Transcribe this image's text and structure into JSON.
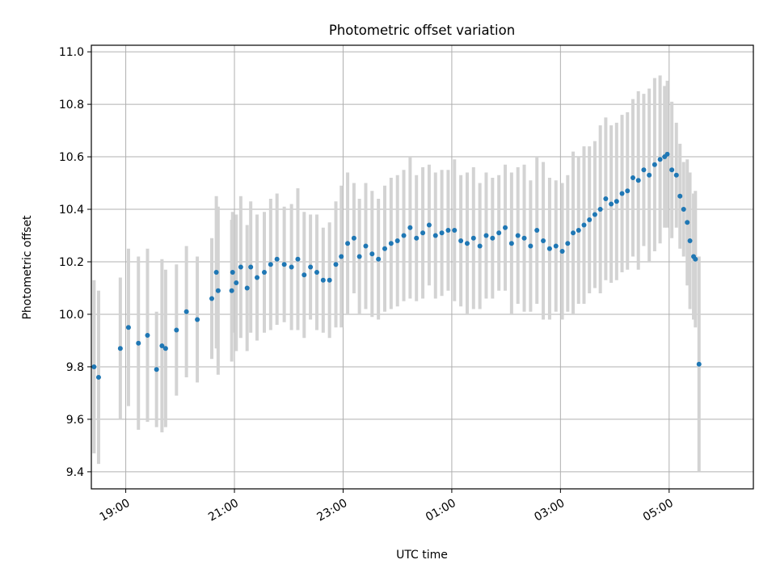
{
  "chart_data": {
    "type": "scatter",
    "title": "Photometric offset variation",
    "xlabel": "UTC time",
    "ylabel": "Photometric offset",
    "x_axis": "time",
    "xlim": [
      "18:22",
      "06:33"
    ],
    "ylim": [
      9.335,
      11.025
    ],
    "x_ticks": [
      "19:00",
      "21:00",
      "23:00",
      "01:00",
      "03:00",
      "05:00"
    ],
    "y_ticks": [
      "9.4",
      "9.6",
      "9.8",
      "10.0",
      "10.2",
      "10.4",
      "10.6",
      "10.8",
      "11.0"
    ],
    "grid": true,
    "legend": "none",
    "colors": {
      "points": "#1f77b4",
      "error_bars": "#d3d3d3",
      "grid": "#b0b0b0"
    },
    "series": [
      {
        "x": [
          "18:25",
          "18:30",
          "18:54",
          "19:03",
          "19:14",
          "19:24",
          "19:34",
          "19:40",
          "19:44",
          "19:56",
          "20:07",
          "20:19",
          "20:35",
          "20:40",
          "20:42",
          "20:57",
          "20:58",
          "21:02",
          "21:07",
          "21:14",
          "21:18",
          "21:25",
          "21:33",
          "21:40",
          "21:47",
          "21:55",
          "22:03",
          "22:10",
          "22:17",
          "22:24",
          "22:31",
          "22:38",
          "22:45",
          "22:52",
          "22:58",
          "23:05",
          "23:12",
          "23:18",
          "23:25",
          "23:32",
          "23:39",
          "23:46",
          "23:53",
          "00:00",
          "00:07",
          "00:14",
          "00:21",
          "00:28",
          "00:35",
          "00:42",
          "00:49",
          "00:56",
          "01:03",
          "01:10",
          "01:17",
          "01:24",
          "01:31",
          "01:38",
          "01:45",
          "01:52",
          "01:59",
          "02:06",
          "02:13",
          "02:20",
          "02:27",
          "02:34",
          "02:41",
          "02:48",
          "02:55",
          "03:02",
          "03:08",
          "03:14",
          "03:20",
          "03:26",
          "03:32",
          "03:38",
          "03:44",
          "03:50",
          "03:56",
          "04:02",
          "04:08",
          "04:14",
          "04:20",
          "04:26",
          "04:32",
          "04:38",
          "04:44",
          "04:50",
          "04:55",
          "04:58",
          "05:03",
          "05:08",
          "05:12",
          "05:16",
          "05:20",
          "05:23",
          "05:27",
          "05:29",
          "05:33"
        ],
        "y": [
          9.8,
          9.76,
          9.87,
          9.95,
          9.89,
          9.92,
          9.79,
          9.88,
          9.87,
          9.94,
          10.01,
          9.98,
          10.06,
          10.16,
          10.09,
          10.09,
          10.16,
          10.12,
          10.18,
          10.1,
          10.18,
          10.14,
          10.16,
          10.19,
          10.21,
          10.19,
          10.18,
          10.21,
          10.15,
          10.18,
          10.16,
          10.13,
          10.13,
          10.19,
          10.22,
          10.27,
          10.29,
          10.22,
          10.26,
          10.23,
          10.21,
          10.25,
          10.27,
          10.28,
          10.3,
          10.33,
          10.29,
          10.31,
          10.34,
          10.3,
          10.31,
          10.32,
          10.32,
          10.28,
          10.27,
          10.29,
          10.26,
          10.3,
          10.29,
          10.31,
          10.33,
          10.27,
          10.3,
          10.29,
          10.26,
          10.32,
          10.28,
          10.25,
          10.26,
          10.24,
          10.27,
          10.31,
          10.32,
          10.34,
          10.36,
          10.38,
          10.4,
          10.44,
          10.42,
          10.43,
          10.46,
          10.47,
          10.52,
          10.51,
          10.55,
          10.53,
          10.57,
          10.59,
          10.6,
          10.61,
          10.55,
          10.53,
          10.45,
          10.4,
          10.35,
          10.28,
          10.22,
          10.21,
          9.81
        ],
        "yerr": [
          0.33,
          0.33,
          0.27,
          0.3,
          0.33,
          0.33,
          0.22,
          0.33,
          0.3,
          0.25,
          0.25,
          0.24,
          0.23,
          0.29,
          0.32,
          0.27,
          0.23,
          0.26,
          0.27,
          0.24,
          0.25,
          0.24,
          0.23,
          0.25,
          0.25,
          0.22,
          0.24,
          0.27,
          0.24,
          0.2,
          0.22,
          0.2,
          0.22,
          0.24,
          0.27,
          0.27,
          0.21,
          0.22,
          0.24,
          0.24,
          0.23,
          0.24,
          0.25,
          0.25,
          0.25,
          0.27,
          0.24,
          0.25,
          0.23,
          0.24,
          0.24,
          0.23,
          0.27,
          0.25,
          0.27,
          0.27,
          0.24,
          0.24,
          0.23,
          0.22,
          0.24,
          0.27,
          0.26,
          0.28,
          0.25,
          0.28,
          0.3,
          0.27,
          0.25,
          0.26,
          0.26,
          0.31,
          0.28,
          0.3,
          0.28,
          0.28,
          0.32,
          0.31,
          0.3,
          0.3,
          0.3,
          0.3,
          0.3,
          0.34,
          0.29,
          0.33,
          0.33,
          0.32,
          0.27,
          0.28,
          0.26,
          0.2,
          0.2,
          0.18,
          0.24,
          0.26,
          0.24,
          0.26,
          0.41
        ]
      }
    ]
  }
}
